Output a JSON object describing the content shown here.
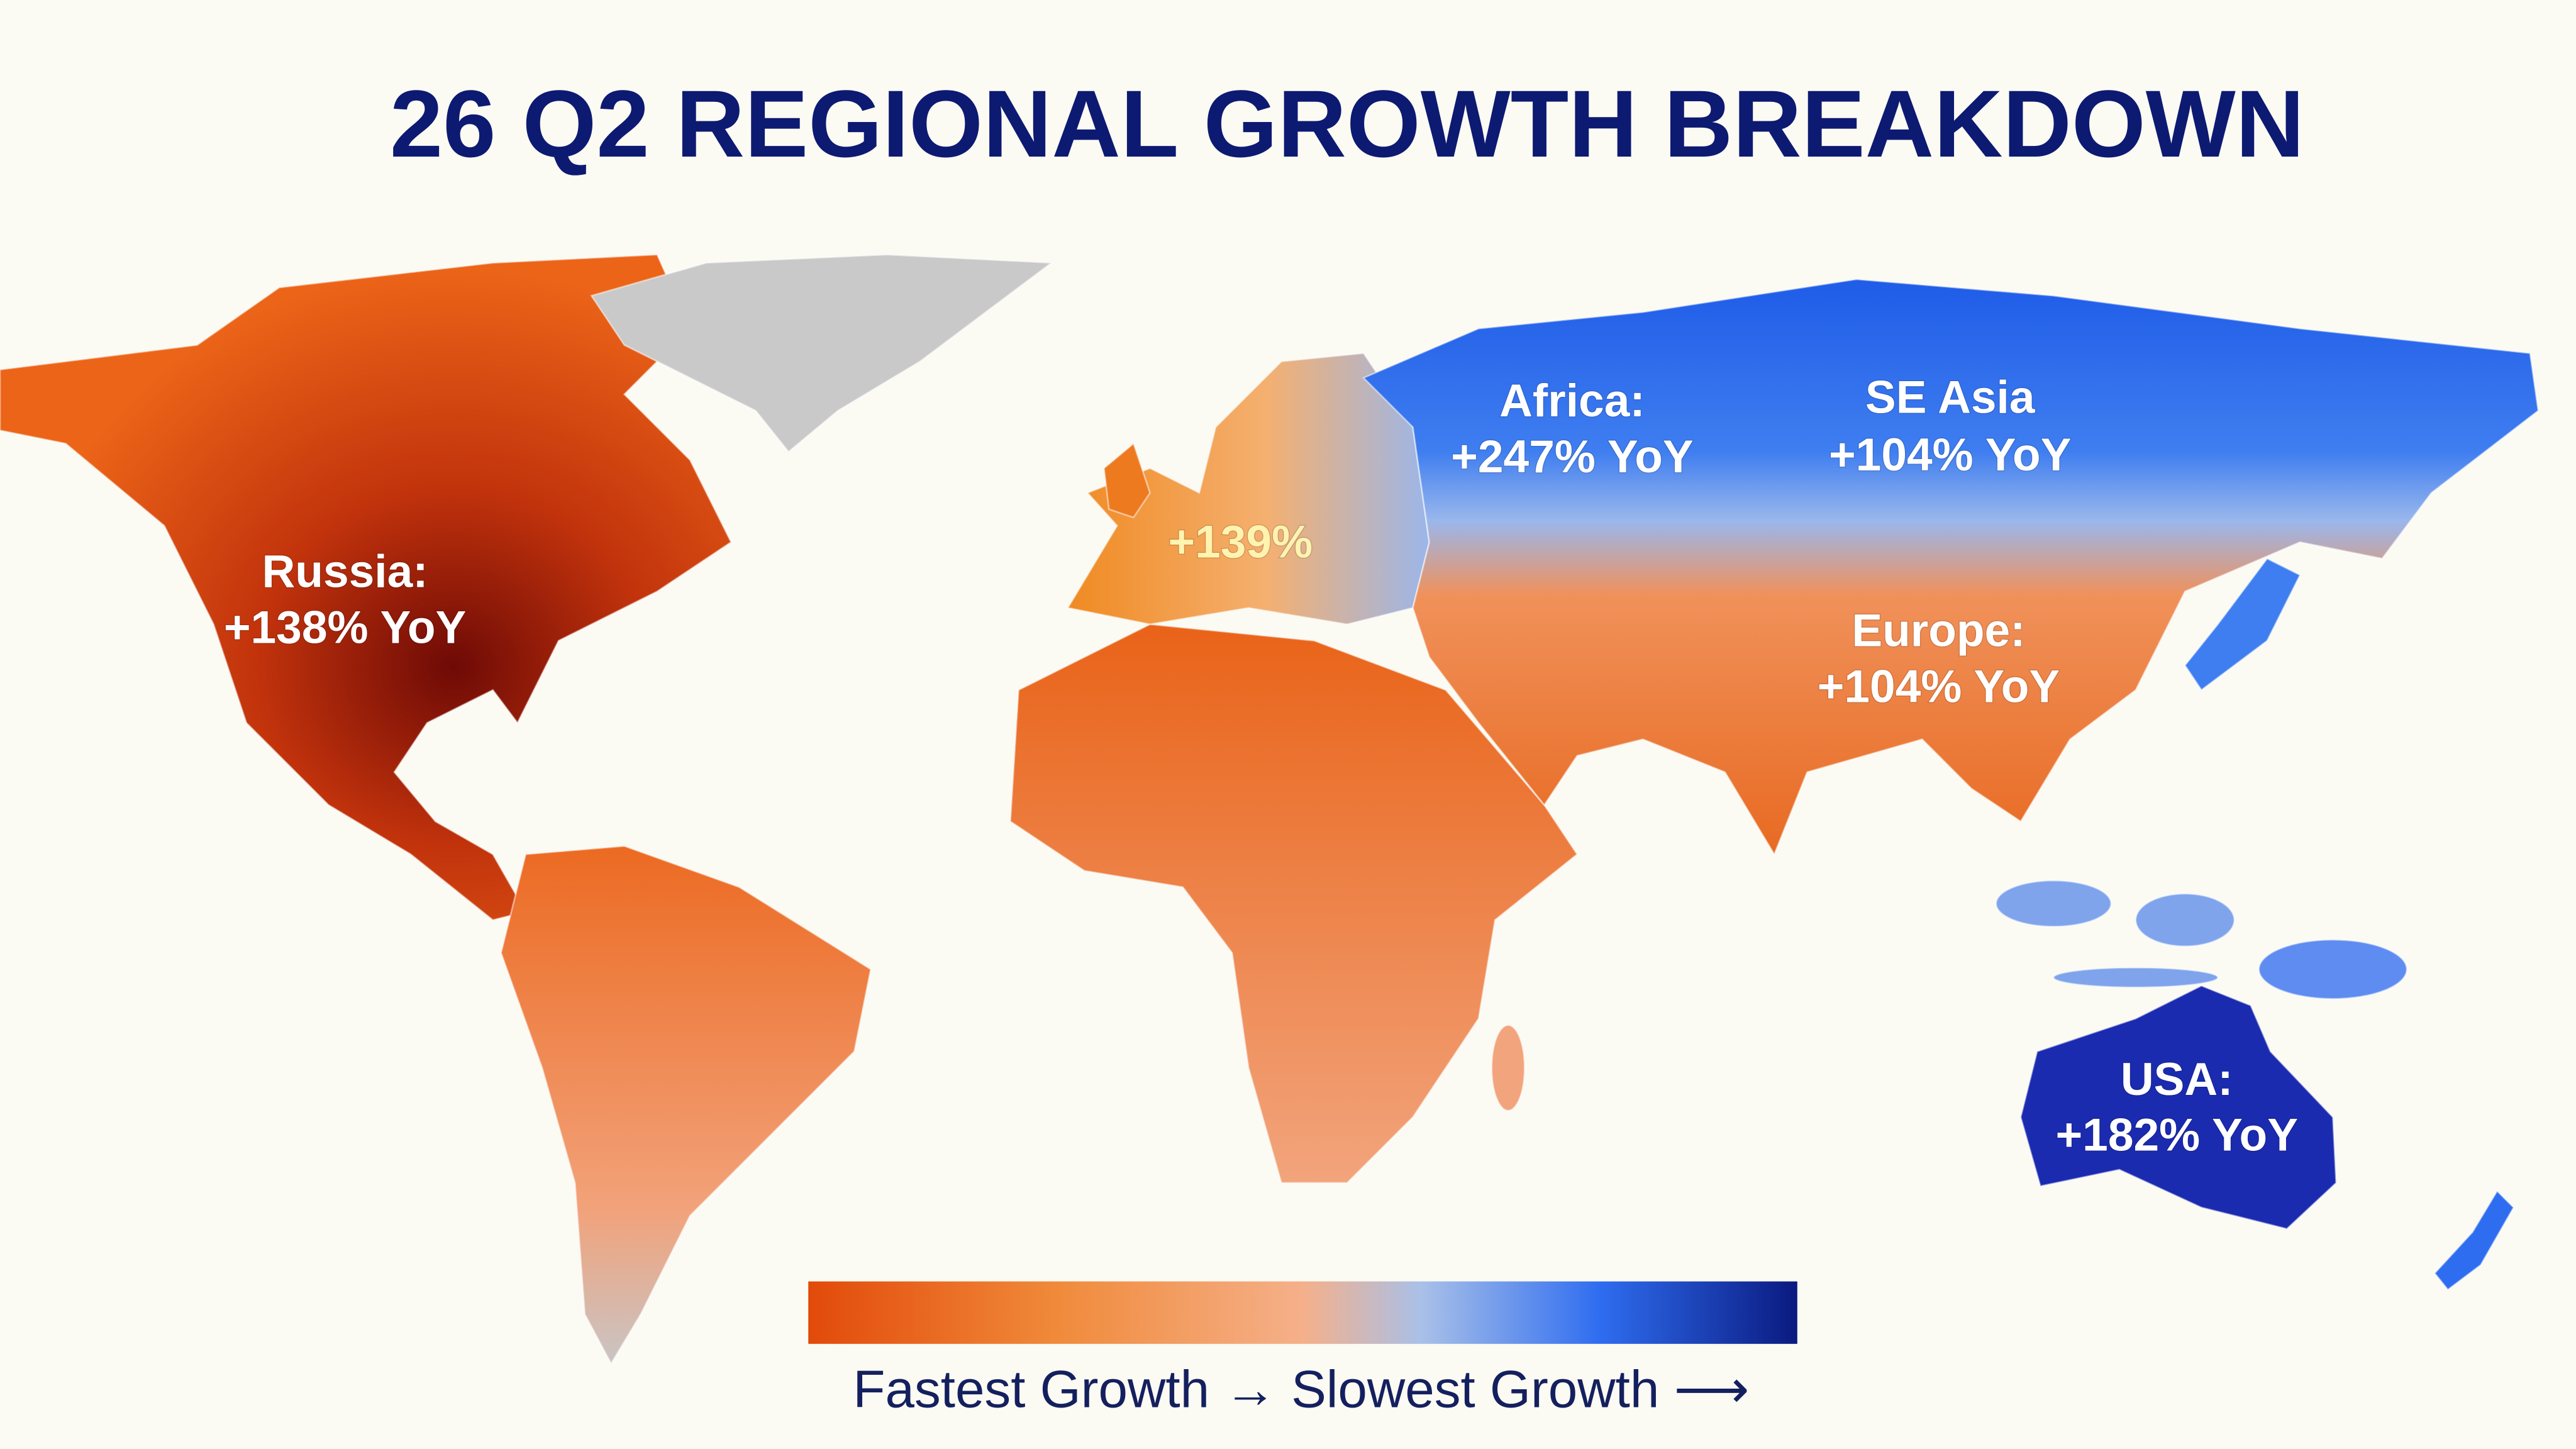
{
  "title": "26 Q2 REGIONAL GROWTH BREAKDOWN",
  "regions": [
    {
      "name": "Russia:",
      "value": "+138% YoY"
    },
    {
      "name": "Africa:",
      "value": "+247% YoY"
    },
    {
      "name": "SE Asia",
      "value": "+104% YoY"
    },
    {
      "value": "+139%"
    },
    {
      "name": "Europe:",
      "value": "+104% YoY"
    },
    {
      "name": "USA:",
      "value": "+182% YoY"
    }
  ],
  "legend": {
    "caption": "Fastest Growth → Slowest Growth ⟶"
  }
}
